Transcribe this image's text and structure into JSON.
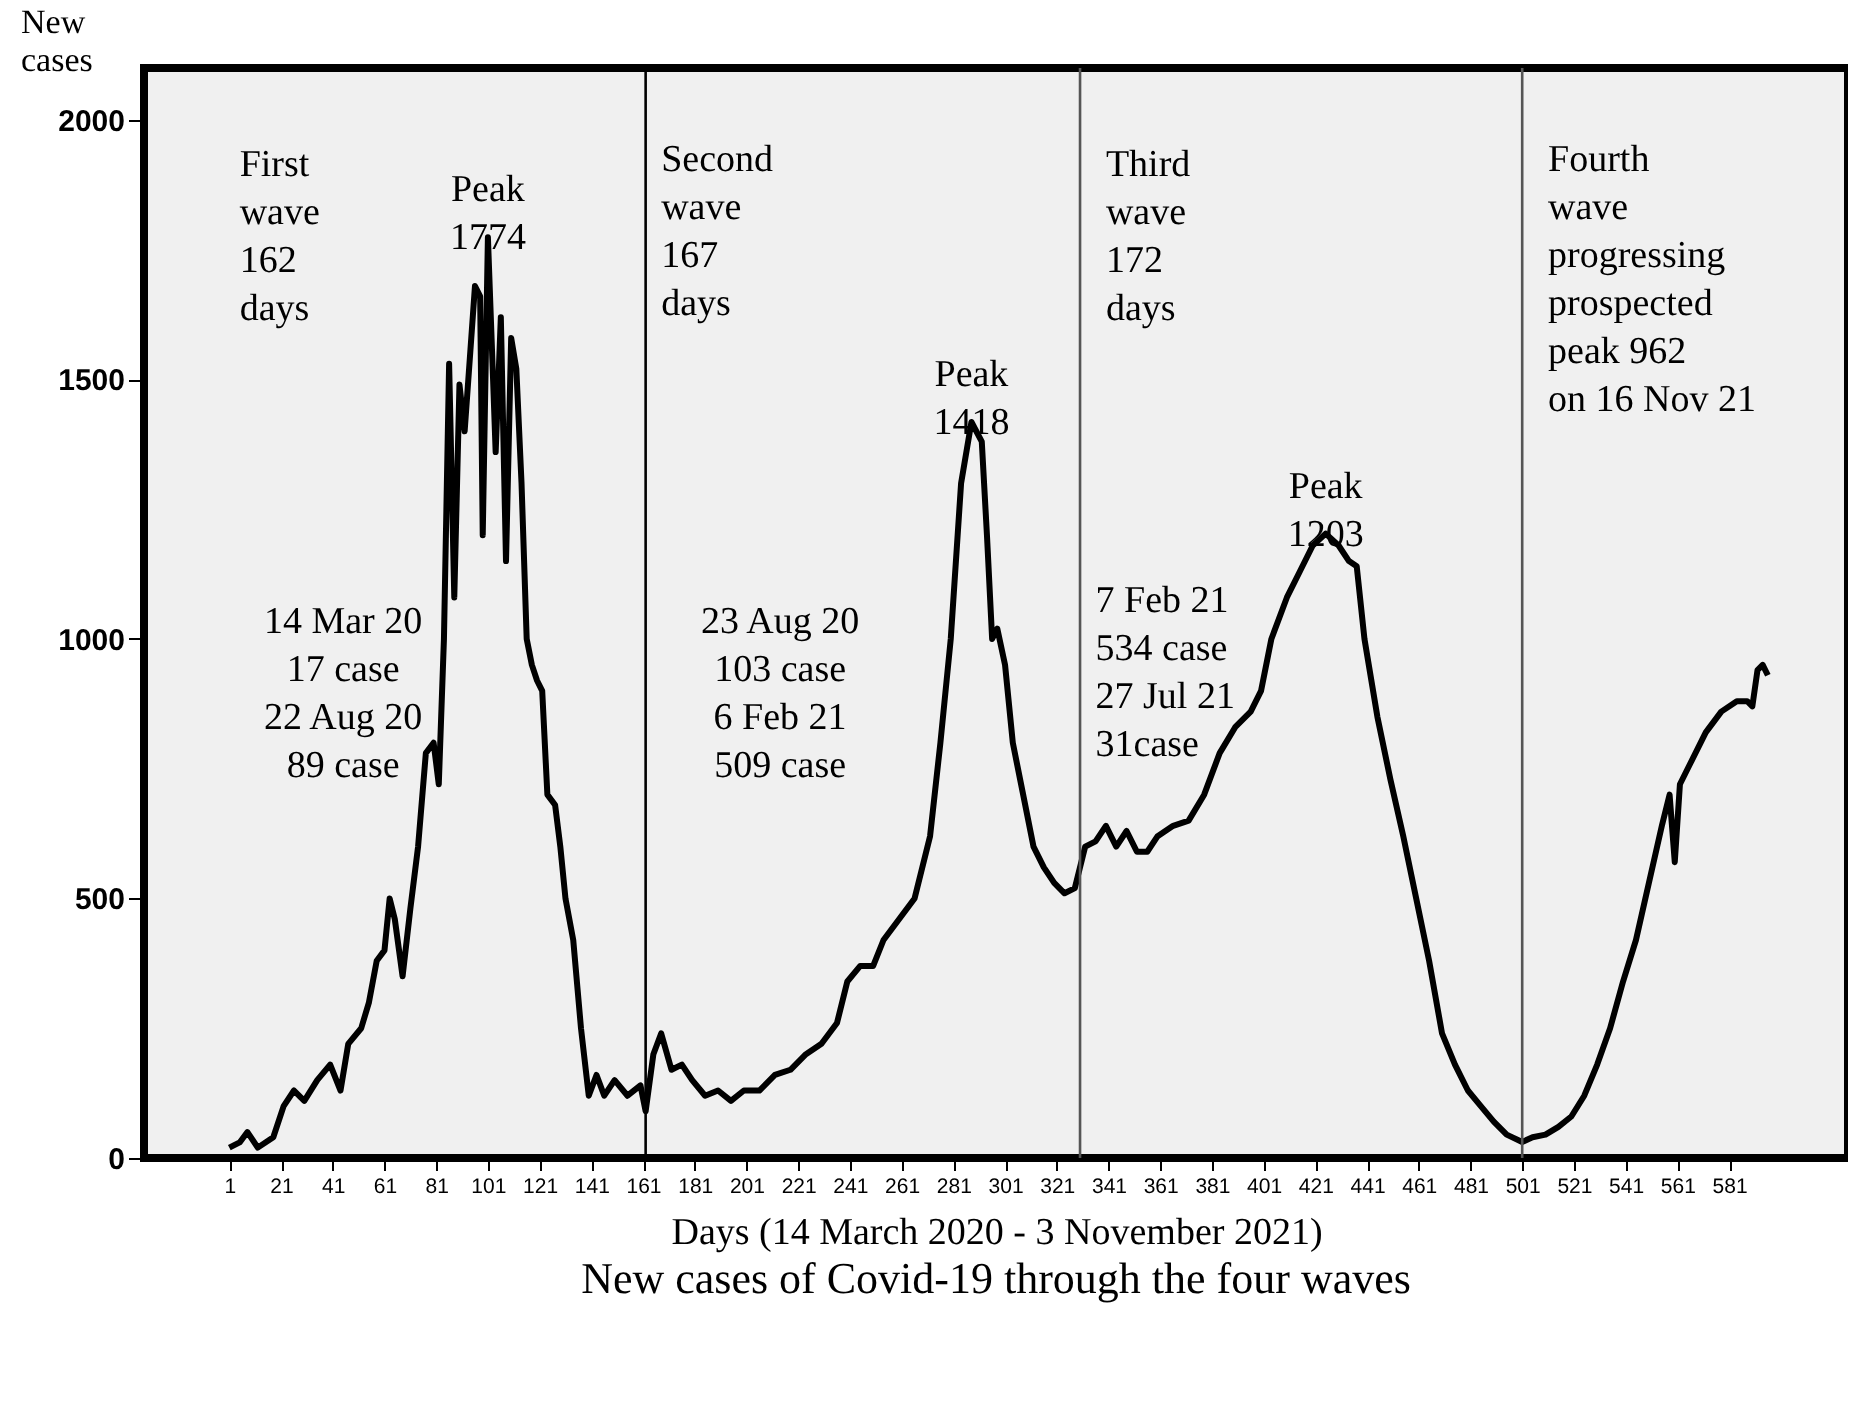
{
  "chart_data": {
    "type": "line",
    "title": "New cases of Covid-19 through the four waves",
    "xlabel": "Days (14 March 2020 - 3 November 2021)",
    "ylabel": "New cases",
    "x": [
      1,
      5,
      8,
      12,
      18,
      22,
      26,
      30,
      35,
      40,
      44,
      47,
      52,
      55,
      58,
      61,
      63,
      65,
      68,
      71,
      74,
      77,
      80,
      82,
      84,
      86,
      88,
      90,
      92,
      94,
      96,
      98,
      99,
      101,
      103,
      104,
      106,
      108,
      110,
      112,
      114,
      116,
      118,
      120,
      122,
      124,
      127,
      129,
      131,
      134,
      137,
      140,
      143,
      146,
      150,
      155,
      160,
      162,
      165,
      168,
      172,
      176,
      180,
      185,
      190,
      195,
      200,
      206,
      212,
      218,
      224,
      230,
      236,
      240,
      245,
      250,
      254,
      260,
      266,
      272,
      276,
      280,
      284,
      288,
      292,
      294,
      296,
      298,
      301,
      304,
      308,
      312,
      316,
      320,
      324,
      328,
      332,
      336,
      340,
      344,
      348,
      352,
      356,
      360,
      366,
      372,
      378,
      384,
      390,
      396,
      400,
      404,
      410,
      415,
      420,
      425,
      430,
      434,
      437,
      440,
      445,
      450,
      455,
      460,
      465,
      470,
      475,
      480,
      485,
      490,
      495,
      501,
      505,
      510,
      515,
      520,
      525,
      530,
      535,
      540,
      545,
      550,
      555,
      558,
      560,
      562,
      566,
      572,
      578,
      584,
      588,
      590,
      592,
      594,
      596
    ],
    "series": [
      {
        "color": "#000000",
        "values": [
          20,
          30,
          50,
          20,
          40,
          100,
          130,
          110,
          150,
          180,
          130,
          220,
          250,
          300,
          380,
          400,
          500,
          460,
          350,
          480,
          600,
          780,
          800,
          720,
          1000,
          1530,
          1080,
          1490,
          1400,
          1540,
          1680,
          1660,
          1200,
          1774,
          1500,
          1360,
          1620,
          1150,
          1580,
          1520,
          1300,
          1000,
          950,
          920,
          900,
          700,
          680,
          600,
          500,
          420,
          250,
          120,
          160,
          120,
          150,
          120,
          140,
          90,
          200,
          240,
          170,
          180,
          150,
          120,
          130,
          110,
          130,
          130,
          160,
          170,
          200,
          220,
          260,
          340,
          370,
          370,
          420,
          460,
          500,
          620,
          800,
          1000,
          1300,
          1418,
          1380,
          1200,
          1000,
          1020,
          950,
          800,
          700,
          600,
          560,
          530,
          510,
          520,
          600,
          610,
          640,
          600,
          630,
          590,
          590,
          620,
          640,
          650,
          700,
          780,
          830,
          860,
          900,
          1000,
          1080,
          1130,
          1180,
          1203,
          1180,
          1150,
          1140,
          1000,
          850,
          730,
          620,
          500,
          380,
          240,
          180,
          130,
          100,
          70,
          45,
          31,
          40,
          45,
          60,
          80,
          120,
          180,
          250,
          340,
          420,
          530,
          640,
          700,
          570,
          720,
          760,
          820,
          860,
          880,
          880,
          870,
          940,
          950,
          930
        ]
      }
    ],
    "xlim": [
      -32,
      627
    ],
    "ylim": [
      0,
      2100
    ],
    "xticks": [
      1,
      21,
      41,
      61,
      81,
      101,
      121,
      141,
      161,
      181,
      201,
      221,
      241,
      261,
      281,
      301,
      321,
      341,
      361,
      381,
      401,
      421,
      441,
      461,
      481,
      501,
      521,
      541,
      561,
      581
    ],
    "yticks": [
      0,
      500,
      {
        "value": 1000,
        "label": "1000"
      },
      {
        "value": 1500,
        "label": "1500"
      },
      {
        "value": 2000,
        "label": "2000"
      }
    ],
    "grid": false,
    "marker": "none",
    "line_style": "solid",
    "ref_lines": [
      {
        "axis": "x",
        "value": 162,
        "color": "#000000"
      },
      {
        "axis": "x",
        "value": 330,
        "color": "#555555"
      },
      {
        "axis": "x",
        "value": 501,
        "color": "#555555"
      }
    ],
    "annotations": [
      "First\nwave\n162\ndays",
      "14 Mar 20\n17 case\n22 Aug 20\n89 case",
      "Second\nwave\n167\ndays",
      "23 Aug 20\n103 case\n6 Feb 21\n509 case",
      "Third\nwave\n172\ndays",
      "7 Feb 21\n534 case\n27 Jul 21\n31case",
      "Fourth\nwave\nprogressing\n\nprospected\npeak 962\non 16 Nov 21",
      {
        "text": "Peak\n1774",
        "x": 101,
        "y": 1774
      },
      {
        "text": "Peak\n1418",
        "x": 288,
        "y": 1418
      },
      {
        "text": "Peak\n1203",
        "x": 425,
        "y": 1203
      }
    ]
  }
}
